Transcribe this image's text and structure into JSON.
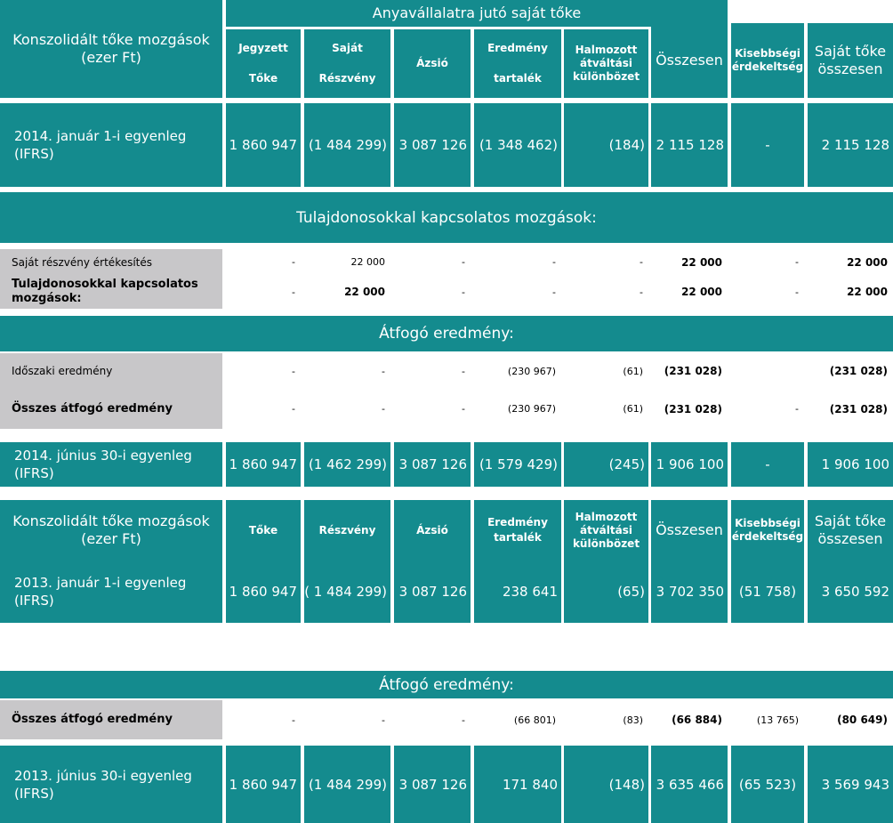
{
  "header2014": {
    "title": "Konszolidált tőke mozgások (ezer Ft)",
    "group": "Anyavállalatra jutó saját tőke",
    "cols": [
      "Jegyzett\n\nTőke",
      "Saját\n\nRészvény",
      "Ázsió",
      "Eredmény\n\ntartalék",
      "Halmozott átváltási különbözet",
      "Összesen",
      "Kisebbségi érdekeltség",
      "Saját tőke összesen"
    ]
  },
  "opening2014": {
    "label": "2014. január 1-i egyenleg (IFRS)",
    "values": [
      "1 860 947",
      "(1 484 299)",
      "3 087 126",
      "(1 348 462)",
      "(184)",
      "2 115 128",
      "-",
      "2 115 128"
    ]
  },
  "owners": {
    "section_title": "Tulajdonosokkal kapcsolatos  mozgások:",
    "rows": [
      {
        "label": "Saját részvény értékesítés",
        "values": [
          "-",
          "22 000",
          "-",
          "-",
          "-",
          "22 000",
          "-",
          "22 000"
        ]
      },
      {
        "label": "Tulajdonosokkal kapcsolatos mozgások:",
        "values": [
          "-",
          "22 000",
          "-",
          "-",
          "-",
          "22 000",
          "-",
          "22 000"
        ]
      }
    ]
  },
  "comp2014": {
    "section_title": "Átfogó eredmény:",
    "rows": [
      {
        "label": "Időszaki eredmény",
        "values": [
          "-",
          "-",
          "-",
          "(230 967)",
          "(61)",
          "(231 028)",
          "",
          "(231 028)"
        ]
      },
      {
        "label": "Összes átfogó eredmény",
        "values": [
          "-",
          "-",
          "-",
          "(230 967)",
          "(61)",
          "(231 028)",
          "-",
          "(231 028)"
        ]
      }
    ]
  },
  "closing2014": {
    "label": "2014. június 30-i egyenleg (IFRS)",
    "values": [
      "1 860 947",
      "(1 462 299)",
      "3 087 126",
      "(1 579 429)",
      "(245)",
      "1 906 100",
      "-",
      "1 906 100"
    ]
  },
  "header2013": {
    "title": "Konszolidált tőke mozgások (ezer Ft)",
    "cols": [
      "Tőke",
      "Részvény",
      "Ázsió",
      "Eredmény tartalék",
      "Halmozott átváltási különbözet",
      "Összesen",
      "Kisebbségi érdekeltség",
      "Saját tőke összesen"
    ]
  },
  "opening2013": {
    "label": "2013. január 1-i egyenleg (IFRS)",
    "values": [
      "1 860 947",
      "( 1 484 299)",
      "3 087 126",
      "238 641",
      "(65)",
      "3 702 350",
      "(51 758)",
      "3 650 592"
    ]
  },
  "comp2013": {
    "section_title": "Átfogó eredmény:",
    "rows": [
      {
        "label": "Összes átfogó eredmény",
        "values": [
          "-",
          "-",
          "-",
          "(66 801)",
          "(83)",
          "(66 884)",
          "(13 765)",
          "(80 649)"
        ]
      }
    ]
  },
  "closing2013": {
    "label": "2013. június 30-i egyenleg (IFRS)",
    "values": [
      "1 860 947",
      "(1 484 299)",
      "3 087 126",
      "171 840",
      "(148)",
      "3 635 466",
      "(65 523)",
      "3 569 943"
    ]
  }
}
